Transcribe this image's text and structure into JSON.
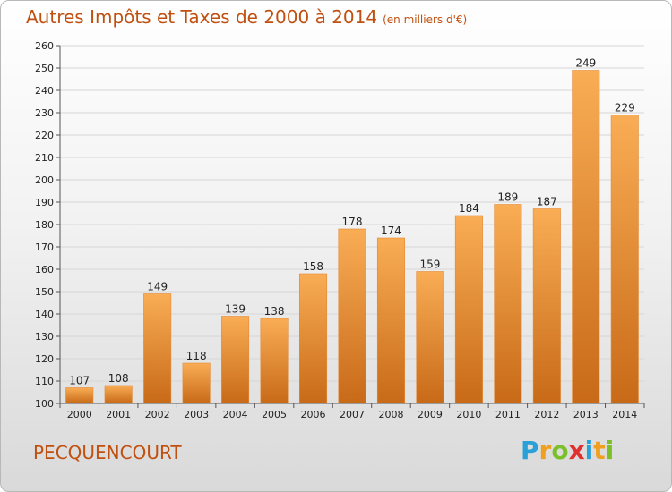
{
  "header": {
    "title": "Autres Impôts et Taxes de 2000 à 2014",
    "unit": "(en milliers d'€)"
  },
  "footer": {
    "commune": "PECQUENCOURT",
    "logo_letters": [
      "P",
      "r",
      "o",
      "x",
      "i",
      "t",
      "i"
    ],
    "logo_colors": [
      "#2aa0d8",
      "#f0a020",
      "#7bbf2a",
      "#e03030",
      "#2aa0d8",
      "#f0a020",
      "#7bbf2a"
    ]
  },
  "colors": {
    "bar_light": "#f7a850",
    "bar_dark": "#c86a18",
    "text_accent": "#c05010",
    "grid": "#d6d6d6"
  },
  "chart_data": {
    "type": "bar",
    "title": "Autres Impôts et Taxes de 2000 à 2014",
    "subtitle": "(en milliers d'€)",
    "categories": [
      "2000",
      "2001",
      "2002",
      "2003",
      "2004",
      "2005",
      "2006",
      "2007",
      "2008",
      "2009",
      "2010",
      "2011",
      "2012",
      "2013",
      "2014"
    ],
    "values": [
      107,
      108,
      149,
      118,
      139,
      138,
      158,
      178,
      174,
      159,
      184,
      189,
      187,
      249,
      229
    ],
    "ylim": [
      100,
      260
    ],
    "yticks": [
      100,
      110,
      120,
      130,
      140,
      150,
      160,
      170,
      180,
      190,
      200,
      210,
      220,
      230,
      240,
      250,
      260
    ],
    "grid": true,
    "legend": "none"
  }
}
